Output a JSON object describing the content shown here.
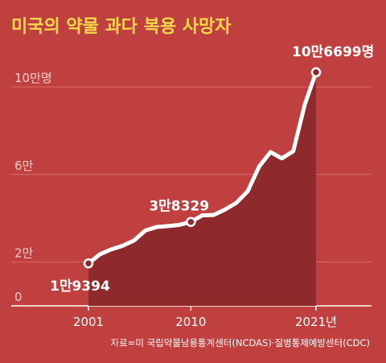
{
  "chart_data": {
    "type": "area",
    "title": "미국의 약물 과다 복용 사망자",
    "source": "자료=미 국립약물남용통계센터(NCDAS)·질병통제예방센터(CDC)",
    "x": [
      2001,
      2002,
      2003,
      2004,
      2005,
      2006,
      2007,
      2008,
      2009,
      2010,
      2011,
      2012,
      2013,
      2014,
      2015,
      2016,
      2017,
      2018,
      2019,
      2020,
      2021
    ],
    "values": [
      19394,
      23518,
      25785,
      27424,
      29813,
      34425,
      36010,
      36450,
      37004,
      38329,
      41340,
      41502,
      43982,
      47055,
      52404,
      63632,
      70237,
      67367,
      70630,
      91799,
      106699
    ],
    "ylim": [
      0,
      110000
    ],
    "yticks": [
      {
        "value": 0,
        "label": "0"
      },
      {
        "value": 20000,
        "label": "2만"
      },
      {
        "value": 60000,
        "label": "6만"
      },
      {
        "value": 100000,
        "label": "10만명"
      }
    ],
    "xticks": [
      {
        "value": 2001,
        "label": "2001"
      },
      {
        "value": 2010,
        "label": "2010"
      },
      {
        "value": 2021,
        "label": "2021년"
      }
    ],
    "annotations": [
      {
        "x": 2001,
        "value": 19394,
        "label": "1만9394"
      },
      {
        "x": 2010,
        "value": 38329,
        "label": "3만8329"
      },
      {
        "x": 2021,
        "value": 106699,
        "label": "10만6699명"
      }
    ],
    "colors": {
      "background": "#c0403f",
      "area": "#8f2a2c",
      "line": "#ffffff",
      "title": "#f5d94a",
      "grid": "#d96c6a"
    }
  }
}
